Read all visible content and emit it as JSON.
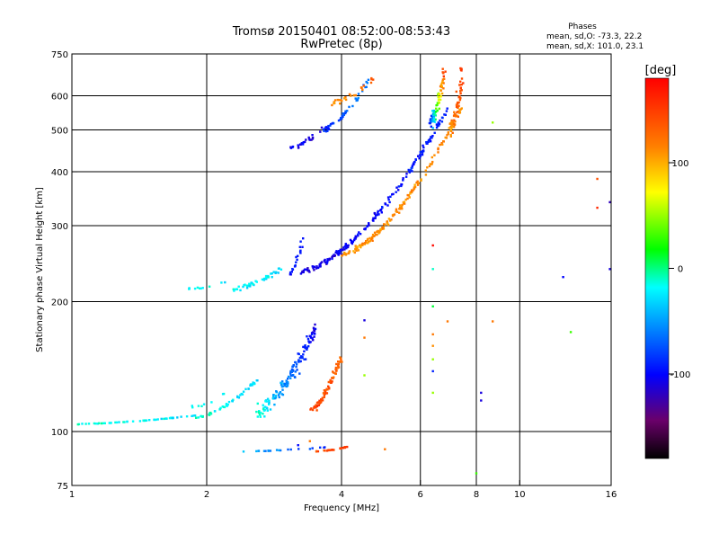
{
  "chart_data": {
    "type": "scatter",
    "title": "Tromsø 20150401 08:52:00-08:53:43",
    "subtitle": "RwPretec (8p)",
    "xlabel": "Frequency [MHz]",
    "ylabel": "Stationary phase Virtual Height [km]",
    "x_scale": "log",
    "y_scale": "log",
    "xlim": [
      1,
      16
    ],
    "ylim": [
      75,
      750
    ],
    "x_ticks": [
      1,
      2,
      4,
      6,
      8,
      10,
      16
    ],
    "y_ticks": [
      75,
      100,
      200,
      300,
      400,
      500,
      600,
      750
    ],
    "grid": true,
    "phases_box": {
      "title": "Phases",
      "line1": "mean, sd,O: -73.3, 22.2",
      "line2": "mean, sd,X: 101.0, 23.1"
    },
    "colorbar": {
      "label": "[deg]",
      "range": [
        -180,
        180
      ],
      "ticks": [
        100,
        0,
        -100
      ]
    },
    "clusters": [
      {
        "f": [
          1.0,
          1.9
        ],
        "h": [
          104,
          109
        ],
        "phase": [
          -15,
          -25
        ],
        "n": 55,
        "s": 0.6
      },
      {
        "f": [
          1.9,
          2.6
        ],
        "h": [
          108,
          132
        ],
        "phase": [
          -10,
          -30
        ],
        "n": 60,
        "s": 2.5
      },
      {
        "f": [
          2.6,
          3.5
        ],
        "h": [
          112,
          175
        ],
        "phase": [
          -10,
          -110
        ],
        "n": 140,
        "s": 20
      },
      {
        "f": [
          3.4,
          4.0
        ],
        "h": [
          112,
          150
        ],
        "phase": [
          150,
          130
        ],
        "n": 70,
        "s": 9
      },
      {
        "f": [
          2.4,
          3.7
        ],
        "h": [
          90,
          92
        ],
        "phase": [
          -40,
          -90
        ],
        "n": 20,
        "s": 1
      },
      {
        "f": [
          3.5,
          4.1
        ],
        "h": [
          90,
          92
        ],
        "phase": [
          140,
          150
        ],
        "n": 25,
        "s": 1
      },
      {
        "f": [
          1.8,
          2.2
        ],
        "h": [
          214,
          222
        ],
        "phase": [
          -20,
          -20
        ],
        "n": 12,
        "s": 3
      },
      {
        "f": [
          2.3,
          2.95
        ],
        "h": [
          214,
          240
        ],
        "phase": [
          -20,
          -30
        ],
        "n": 45,
        "s": 5
      },
      {
        "f": [
          3.05,
          3.3
        ],
        "h": [
          230,
          285
        ],
        "phase": [
          -95,
          -95
        ],
        "n": 20,
        "s": 4
      },
      {
        "f": [
          3.25,
          6.9
        ],
        "h": [
          235,
          560
        ],
        "phase": [
          -110,
          -90
        ],
        "n": 190,
        "s": 6
      },
      {
        "f": [
          6.3,
          6.8
        ],
        "h": [
          520,
          680
        ],
        "phase": [
          -100,
          160
        ],
        "n": 70,
        "s": 20
      },
      {
        "f": [
          4.0,
          7.4
        ],
        "h": [
          258,
          560
        ],
        "phase": [
          110,
          110
        ],
        "n": 160,
        "s": 6
      },
      {
        "f": [
          7.0,
          7.45
        ],
        "h": [
          500,
          680
        ],
        "phase": [
          110,
          150
        ],
        "n": 60,
        "s": 25
      },
      {
        "f": [
          3.1,
          3.6
        ],
        "h": [
          455,
          500
        ],
        "phase": [
          -100,
          -110
        ],
        "n": 25,
        "s": 6
      },
      {
        "f": [
          3.6,
          4.6
        ],
        "h": [
          500,
          650
        ],
        "phase": [
          -90,
          -60
        ],
        "n": 50,
        "s": 8
      },
      {
        "f": [
          3.8,
          4.8
        ],
        "h": [
          580,
          670
        ],
        "phase": [
          110,
          130
        ],
        "n": 25,
        "s": 10
      },
      {
        "f": [
          1.85,
          2.2
        ],
        "h": [
          114,
          122
        ],
        "phase": [
          -20,
          -20
        ],
        "n": 8,
        "s": 3
      }
    ],
    "scattered_points": [
      {
        "f": 6.4,
        "h": 270,
        "phase": 175
      },
      {
        "f": 6.4,
        "h": 238,
        "phase": -10
      },
      {
        "f": 6.4,
        "h": 195,
        "phase": 10
      },
      {
        "f": 6.4,
        "h": 168,
        "phase": 120
      },
      {
        "f": 6.4,
        "h": 158,
        "phase": 110
      },
      {
        "f": 6.4,
        "h": 147,
        "phase": 50
      },
      {
        "f": 6.4,
        "h": 138,
        "phase": -90
      },
      {
        "f": 6.4,
        "h": 123,
        "phase": 50
      },
      {
        "f": 6.9,
        "h": 180,
        "phase": 120
      },
      {
        "f": 8.2,
        "h": 123,
        "phase": -110
      },
      {
        "f": 8.2,
        "h": 118,
        "phase": -110
      },
      {
        "f": 8.0,
        "h": 80,
        "phase": 30
      },
      {
        "f": 8.7,
        "h": 180,
        "phase": 120
      },
      {
        "f": 8.7,
        "h": 520,
        "phase": 50
      },
      {
        "f": 4.5,
        "h": 181,
        "phase": -110
      },
      {
        "f": 4.5,
        "h": 165,
        "phase": 120
      },
      {
        "f": 4.5,
        "h": 135,
        "phase": 50
      },
      {
        "f": 12.5,
        "h": 228,
        "phase": -100
      },
      {
        "f": 13.0,
        "h": 170,
        "phase": 30
      },
      {
        "f": 14.9,
        "h": 385,
        "phase": 140
      },
      {
        "f": 14.9,
        "h": 330,
        "phase": 160
      },
      {
        "f": 15.9,
        "h": 340,
        "phase": -120
      },
      {
        "f": 15.9,
        "h": 238,
        "phase": -110
      },
      {
        "f": 5.0,
        "h": 91,
        "phase": 120
      },
      {
        "f": 3.4,
        "h": 95,
        "phase": 120
      },
      {
        "f": 3.2,
        "h": 93,
        "phase": -100
      }
    ]
  }
}
